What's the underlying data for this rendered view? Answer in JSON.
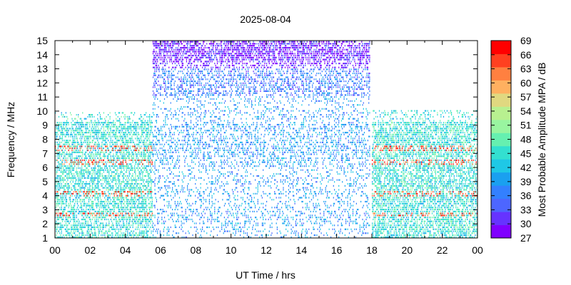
{
  "chart_data": {
    "type": "heatmap",
    "title": "2025-08-04",
    "xlabel": "UT Time / hrs",
    "ylabel": "Frequency / MHz",
    "colorbar_label": "Most Probable Amplitude MPA / dB",
    "xlim": [
      0,
      24
    ],
    "ylim": [
      1,
      15
    ],
    "x_ticks": [
      "00",
      "02",
      "04",
      "06",
      "08",
      "10",
      "12",
      "14",
      "16",
      "18",
      "20",
      "22",
      "00"
    ],
    "y_ticks": [
      "1",
      "2",
      "3",
      "4",
      "5",
      "6",
      "7",
      "8",
      "9",
      "10",
      "11",
      "12",
      "13",
      "14",
      "15"
    ],
    "colorbar": {
      "range": [
        27,
        69
      ],
      "ticks": [
        "27",
        "30",
        "33",
        "36",
        "39",
        "42",
        "45",
        "48",
        "51",
        "54",
        "57",
        "60",
        "63",
        "66",
        "69"
      ],
      "colors": [
        "#8000ff",
        "#6633ff",
        "#4d66ff",
        "#3380ff",
        "#1aa0f0",
        "#1fc8e6",
        "#33e0d0",
        "#66f0b0",
        "#99f5a0",
        "#b8f090",
        "#e0d880",
        "#ffb060",
        "#ff8040",
        "#ff4020",
        "#ff0000"
      ]
    },
    "regions": [
      {
        "t_start": 0.0,
        "t_end": 5.5,
        "f_min": 1.0,
        "f_max": 9.9,
        "dominant_db": 45
      },
      {
        "t_start": 5.5,
        "t_end": 17.9,
        "f_min": 1.0,
        "f_max": 15.0,
        "dominant_db": 39
      },
      {
        "t_start": 5.5,
        "t_end": 17.9,
        "f_min": 13.0,
        "f_max": 15.0,
        "dominant_db": 30
      },
      {
        "t_start": 5.5,
        "t_end": 17.9,
        "f_min": 11.0,
        "f_max": 13.0,
        "dominant_db": 36
      },
      {
        "t_start": 18.0,
        "t_end": 24.0,
        "f_min": 1.0,
        "f_max": 10.0,
        "dominant_db": 45
      }
    ],
    "grid": false,
    "legend": "colorbar-right"
  }
}
